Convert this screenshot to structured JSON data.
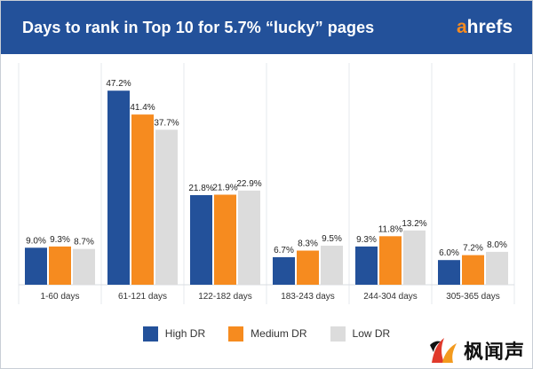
{
  "header": {
    "title": "Days to rank in Top 10 for 5.7% “lucky” pages",
    "logo_a": "a",
    "logo_rest": "hrefs"
  },
  "colors": {
    "header_bg": "#23519a",
    "high_dr": "#23519a",
    "medium_dr": "#f68b1f",
    "low_dr": "#dcdcdc"
  },
  "chart_data": {
    "type": "bar",
    "title": "Days to rank in Top 10 for 5.7% “lucky” pages",
    "categories": [
      "1-60 days",
      "61-121 days",
      "122-182 days",
      "183-243 days",
      "244-304 days",
      "305-365 days"
    ],
    "series": [
      {
        "name": "High DR",
        "values": [
          9.0,
          47.2,
          21.8,
          6.7,
          9.3,
          6.0
        ],
        "labels": [
          "9.0%",
          "47.2%",
          "21.8%",
          "6.7%",
          "9.3%",
          "6.0%"
        ],
        "color": "#23519a"
      },
      {
        "name": "Medium DR",
        "values": [
          9.3,
          41.4,
          21.9,
          8.3,
          11.8,
          7.2
        ],
        "labels": [
          "9.3%",
          "41.4%",
          "21.9%",
          "8.3%",
          "11.8%",
          "7.2%"
        ],
        "color": "#f68b1f"
      },
      {
        "name": "Low DR",
        "values": [
          8.7,
          37.7,
          22.9,
          9.5,
          13.2,
          8.0
        ],
        "labels": [
          "8.7%",
          "37.7%",
          "22.9%",
          "9.5%",
          "13.2%",
          "8.0%"
        ],
        "color": "#dcdcdc"
      }
    ],
    "ylim": [
      0,
      50
    ],
    "grid": false,
    "legend_position": "bottom"
  },
  "legend": {
    "items": [
      {
        "label": "High DR",
        "color": "#23519a"
      },
      {
        "label": "Medium DR",
        "color": "#f68b1f"
      },
      {
        "label": "Low DR",
        "color": "#dcdcdc"
      }
    ]
  },
  "watermark": {
    "text": "枫闻声"
  }
}
